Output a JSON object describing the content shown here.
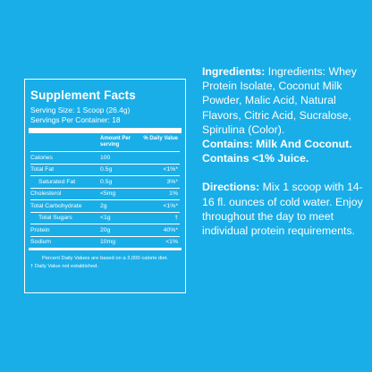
{
  "supplement_facts": {
    "title": "Supplement Facts",
    "serving_size": "Serving Size: 1 Scoop (26.4g)",
    "servings_per_container": "Servings Per Container: 18",
    "header_amount": "Amount Per serving",
    "header_dv": "% Daily Value",
    "rows": [
      {
        "name": "Calories",
        "amount": "100",
        "dv": ""
      },
      {
        "name": "Total Fat",
        "amount": "0.5g",
        "dv": "<1%*"
      },
      {
        "name": "Saturated Fat",
        "amount": "0.5g",
        "dv": "3%*"
      },
      {
        "name": "Cholesterol",
        "amount": "<5mg",
        "dv": "1%"
      },
      {
        "name": "Total Carbohydrate",
        "amount": "2g",
        "dv": "<1%*"
      },
      {
        "name": "Total Sugars",
        "amount": "<1g",
        "dv": "†"
      },
      {
        "name": "Protein",
        "amount": "20g",
        "dv": "40%*"
      },
      {
        "name": "Sodium",
        "amount": "10mg",
        "dv": "<1%"
      }
    ],
    "footnote_1": "Percent Daily Values are based on a 2,000 calorie diet.",
    "footnote_2": "† Daily Value not established."
  },
  "ingredients": {
    "label": "Ingredients:",
    "text": "Ingredients: Whey Protein Isolate, Coconut Milk Powder, Malic Acid, Natural Flavors, Citric Acid, Sucralose, Spirulina (Color).",
    "contains": "Contains: Milk And Coconut. Contains <1% Juice."
  },
  "directions": {
    "label": "Directions:",
    "text": "Mix 1 scoop with 14-16 fl. ounces  of cold water. Enjoy throughout the day to meet individual protein requirements."
  },
  "colors": {
    "background": "#1aaee8",
    "text": "#ffffff"
  }
}
